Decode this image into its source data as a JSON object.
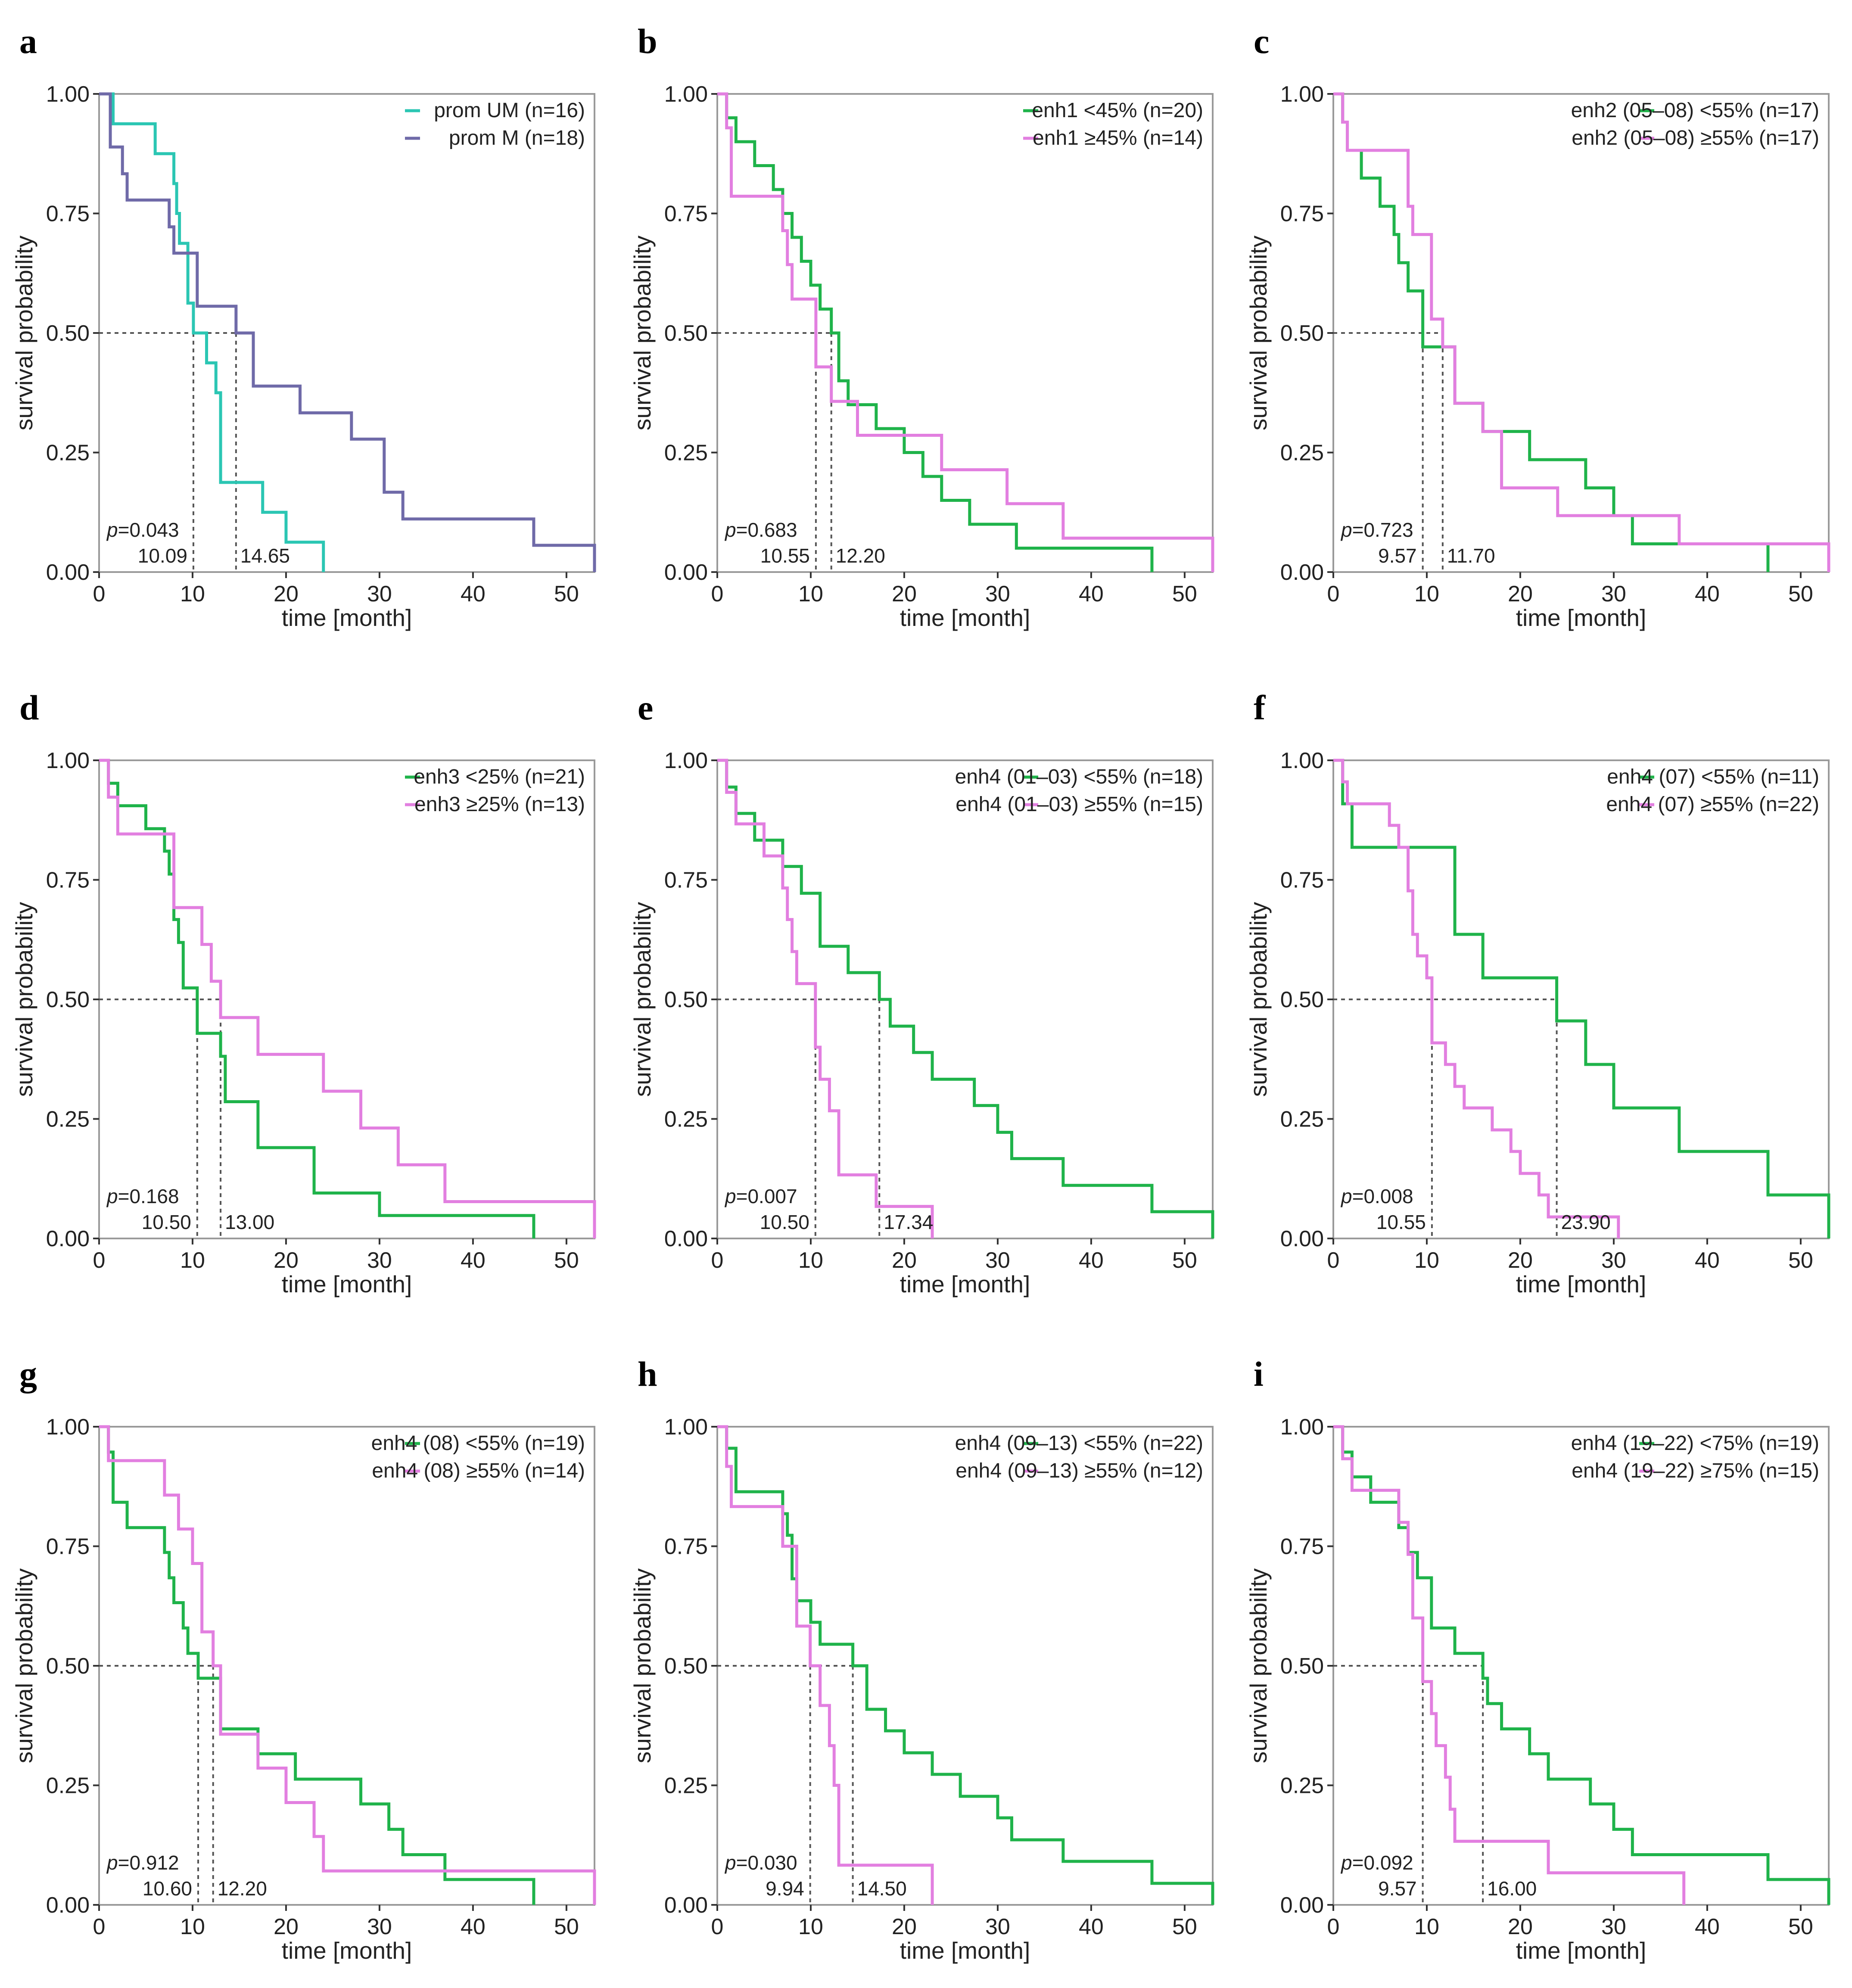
{
  "colors": {
    "teal": "#2bc6b3",
    "slate": "#6f6aa8",
    "green": "#1fb34a",
    "pink": "#e27fe0",
    "frame": "#9a9a9a",
    "guide": "#555555"
  },
  "chart_data": [
    {
      "panel": "a",
      "type": "line",
      "step": true,
      "xlabel": "time [month]",
      "ylabel": "survival probability",
      "xlim": [
        0,
        53
      ],
      "ylim": [
        0,
        1
      ],
      "xticks": [
        "0",
        "10",
        "20",
        "30",
        "40",
        "50"
      ],
      "yticks": [
        "0.00",
        "0.25",
        "0.50",
        "0.75",
        "1.00"
      ],
      "p_value": "p=0.043",
      "median_labels": [
        "10.09",
        "14.65"
      ],
      "series": [
        {
          "name": "prom UM (n=16)",
          "color": "#2bc6b3",
          "median": 10.09,
          "times": [
            1.5,
            6,
            8,
            8.3,
            8.6,
            9.5,
            10.09,
            11.5,
            12.5,
            13,
            17.5,
            20,
            22.8,
            24
          ],
          "survival": [
            0.9375,
            0.875,
            0.8125,
            0.75,
            0.6875,
            0.5625,
            0.5,
            0.4375,
            0.375,
            0.1875,
            0.125,
            0.0625,
            0.0625,
            0.0
          ]
        },
        {
          "name": "prom M (n=18)",
          "color": "#6f6aa8",
          "median": 14.65,
          "times": [
            1.2,
            2.5,
            3,
            7.5,
            8,
            10.5,
            14.65,
            16.5,
            21.5,
            27,
            30.5,
            32.5,
            37,
            46.5,
            53
          ],
          "survival": [
            0.889,
            0.833,
            0.778,
            0.722,
            0.667,
            0.556,
            0.5,
            0.389,
            0.333,
            0.278,
            0.167,
            0.111,
            0.111,
            0.056,
            0.0
          ]
        }
      ]
    },
    {
      "panel": "b",
      "type": "line",
      "step": true,
      "xlabel": "time [month]",
      "ylabel": "survival probability",
      "xlim": [
        0,
        53
      ],
      "ylim": [
        0,
        1
      ],
      "xticks": [
        "0",
        "10",
        "20",
        "30",
        "40",
        "50"
      ],
      "yticks": [
        "0.00",
        "0.25",
        "0.50",
        "0.75",
        "1.00"
      ],
      "p_value": "p=0.683",
      "median_labels": [
        "10.55",
        "12.20"
      ],
      "series": [
        {
          "name": "enh1 <45% (n=20)",
          "color": "#1fb34a",
          "median": 12.2,
          "times": [
            1,
            2,
            4,
            6,
            7,
            8,
            9,
            10,
            11,
            12.2,
            13,
            14,
            17,
            20,
            22,
            24,
            27,
            32,
            46.5
          ],
          "survival": [
            0.95,
            0.9,
            0.85,
            0.8,
            0.75,
            0.7,
            0.65,
            0.6,
            0.55,
            0.5,
            0.4,
            0.35,
            0.3,
            0.25,
            0.2,
            0.15,
            0.1,
            0.05,
            0.0
          ]
        },
        {
          "name": "enh1 ≥45% (n=14)",
          "color": "#e27fe0",
          "median": 10.55,
          "times": [
            1,
            1.5,
            7,
            7.5,
            8,
            10.55,
            12.2,
            15,
            24,
            31,
            37,
            53
          ],
          "survival": [
            0.929,
            0.786,
            0.714,
            0.643,
            0.571,
            0.429,
            0.357,
            0.286,
            0.214,
            0.143,
            0.071,
            0.0
          ]
        }
      ]
    },
    {
      "panel": "c",
      "type": "line",
      "step": true,
      "xlabel": "time [month]",
      "ylabel": "survival probability",
      "xlim": [
        0,
        53
      ],
      "ylim": [
        0,
        1
      ],
      "xticks": [
        "0",
        "10",
        "20",
        "30",
        "40",
        "50"
      ],
      "yticks": [
        "0.00",
        "0.25",
        "0.50",
        "0.75",
        "1.00"
      ],
      "p_value": "p=0.723",
      "median_labels": [
        "9.57",
        "11.70"
      ],
      "series": [
        {
          "name": "enh2 (05–08) <55% (n=17)",
          "color": "#1fb34a",
          "median": 9.57,
          "times": [
            1,
            1.5,
            3,
            5,
            6.5,
            7,
            8,
            9.57,
            13,
            16,
            21,
            27,
            30,
            32,
            46.5
          ],
          "survival": [
            0.941,
            0.882,
            0.824,
            0.765,
            0.706,
            0.647,
            0.588,
            0.471,
            0.353,
            0.294,
            0.235,
            0.176,
            0.118,
            0.059,
            0.0
          ]
        },
        {
          "name": "enh2 (05–08) ≥55% (n=17)",
          "color": "#e27fe0",
          "median": 11.7,
          "times": [
            1,
            1.5,
            8,
            8.5,
            10.5,
            11.7,
            13,
            16,
            18,
            24,
            37,
            53
          ],
          "survival": [
            0.941,
            0.882,
            0.765,
            0.706,
            0.529,
            0.471,
            0.353,
            0.294,
            0.176,
            0.118,
            0.059,
            0.0
          ]
        }
      ]
    },
    {
      "panel": "d",
      "type": "line",
      "step": true,
      "xlabel": "time [month]",
      "ylabel": "survival probability",
      "xlim": [
        0,
        53
      ],
      "ylim": [
        0,
        1
      ],
      "xticks": [
        "0",
        "10",
        "20",
        "30",
        "40",
        "50"
      ],
      "yticks": [
        "0.00",
        "0.25",
        "0.50",
        "0.75",
        "1.00"
      ],
      "p_value": "p=0.168",
      "median_labels": [
        "10.50",
        "13.00"
      ],
      "series": [
        {
          "name": "enh3 <25% (n=21)",
          "color": "#1fb34a",
          "median": 10.5,
          "times": [
            1,
            2,
            5,
            7,
            7.5,
            8,
            8.5,
            9,
            10.5,
            13,
            13.5,
            17,
            23,
            30,
            46.5
          ],
          "survival": [
            0.952,
            0.905,
            0.857,
            0.81,
            0.762,
            0.667,
            0.619,
            0.524,
            0.429,
            0.381,
            0.286,
            0.19,
            0.095,
            0.048,
            0.0
          ]
        },
        {
          "name": "enh3 ≥25% (n=13)",
          "color": "#e27fe0",
          "median": 13.0,
          "times": [
            1,
            2,
            8,
            11,
            12,
            13,
            17,
            24,
            28,
            32,
            37,
            53
          ],
          "survival": [
            0.923,
            0.846,
            0.692,
            0.615,
            0.538,
            0.462,
            0.385,
            0.308,
            0.231,
            0.154,
            0.077,
            0.0
          ]
        }
      ]
    },
    {
      "panel": "e",
      "type": "line",
      "step": true,
      "xlabel": "time [month]",
      "ylabel": "survival probability",
      "xlim": [
        0,
        53
      ],
      "ylim": [
        0,
        1
      ],
      "xticks": [
        "0",
        "10",
        "20",
        "30",
        "40",
        "50"
      ],
      "yticks": [
        "0.00",
        "0.25",
        "0.50",
        "0.75",
        "1.00"
      ],
      "p_value": "p=0.007",
      "median_labels": [
        "10.50",
        "17.34"
      ],
      "series": [
        {
          "name": "enh4 (01–03) <55% (n=18)",
          "color": "#1fb34a",
          "median": 17.34,
          "times": [
            1,
            2,
            4,
            7,
            9,
            11,
            14,
            17.34,
            18.5,
            21,
            23,
            27.5,
            30,
            31.5,
            37,
            46.5,
            53
          ],
          "survival": [
            0.944,
            0.889,
            0.833,
            0.778,
            0.722,
            0.611,
            0.556,
            0.5,
            0.444,
            0.389,
            0.333,
            0.278,
            0.222,
            0.167,
            0.111,
            0.056,
            0.0
          ]
        },
        {
          "name": "enh4 (01–03) ≥55% (n=15)",
          "color": "#e27fe0",
          "median": 10.5,
          "times": [
            1,
            2,
            5,
            7,
            7.5,
            8,
            8.5,
            10.5,
            11,
            12,
            13,
            17,
            23
          ],
          "survival": [
            0.933,
            0.867,
            0.8,
            0.733,
            0.667,
            0.6,
            0.533,
            0.4,
            0.333,
            0.267,
            0.133,
            0.067,
            0.0
          ]
        }
      ]
    },
    {
      "panel": "f",
      "type": "line",
      "step": true,
      "xlabel": "time [month]",
      "ylabel": "survival probability",
      "xlim": [
        0,
        53
      ],
      "ylim": [
        0,
        1
      ],
      "xticks": [
        "0",
        "10",
        "20",
        "30",
        "40",
        "50"
      ],
      "yticks": [
        "0.00",
        "0.25",
        "0.50",
        "0.75",
        "1.00"
      ],
      "p_value": "p=0.008",
      "median_labels": [
        "10.55",
        "23.90"
      ],
      "series": [
        {
          "name": "enh4 (07) <55% (n=11)",
          "color": "#1fb34a",
          "median": 23.9,
          "times": [
            1,
            2,
            13,
            16,
            23.9,
            27,
            30,
            37,
            46.5,
            53
          ],
          "survival": [
            0.909,
            0.818,
            0.636,
            0.545,
            0.455,
            0.364,
            0.273,
            0.182,
            0.091,
            0.0
          ]
        },
        {
          "name": "enh4 (07) ≥55% (n=22)",
          "color": "#e27fe0",
          "median": 10.55,
          "times": [
            1,
            1.5,
            6,
            7,
            8,
            8.5,
            9,
            10,
            10.55,
            12,
            13,
            14,
            17,
            19,
            20,
            22,
            23,
            24,
            30.5
          ],
          "survival": [
            0.955,
            0.909,
            0.864,
            0.818,
            0.727,
            0.636,
            0.591,
            0.545,
            0.409,
            0.364,
            0.318,
            0.273,
            0.227,
            0.182,
            0.136,
            0.091,
            0.045,
            0.045,
            0.0
          ]
        }
      ]
    },
    {
      "panel": "g",
      "type": "line",
      "step": true,
      "xlabel": "time [month]",
      "ylabel": "survival probability",
      "xlim": [
        0,
        53
      ],
      "ylim": [
        0,
        1
      ],
      "xticks": [
        "0",
        "10",
        "20",
        "30",
        "40",
        "50"
      ],
      "yticks": [
        "0.00",
        "0.25",
        "0.50",
        "0.75",
        "1.00"
      ],
      "p_value": "p=0.912",
      "median_labels": [
        "10.60",
        "12.20"
      ],
      "series": [
        {
          "name": "enh4 (08) <55% (n=19)",
          "color": "#1fb34a",
          "median": 10.6,
          "times": [
            1,
            1.5,
            3,
            7,
            7.5,
            8,
            9,
            9.5,
            10.6,
            13,
            17,
            21,
            28,
            31,
            32.5,
            37,
            46.5
          ],
          "survival": [
            0.947,
            0.842,
            0.789,
            0.737,
            0.684,
            0.632,
            0.579,
            0.526,
            0.474,
            0.368,
            0.316,
            0.263,
            0.211,
            0.158,
            0.105,
            0.053,
            0.0
          ]
        },
        {
          "name": "enh4 (08) ≥55% (n=14)",
          "color": "#e27fe0",
          "median": 12.2,
          "times": [
            1,
            7,
            8.5,
            10,
            11,
            12.2,
            13,
            17,
            20,
            23,
            24,
            53
          ],
          "survival": [
            0.929,
            0.857,
            0.786,
            0.714,
            0.571,
            0.5,
            0.357,
            0.286,
            0.214,
            0.143,
            0.071,
            0.0
          ]
        }
      ]
    },
    {
      "panel": "h",
      "type": "line",
      "step": true,
      "xlabel": "time [month]",
      "ylabel": "survival probability",
      "xlim": [
        0,
        53
      ],
      "ylim": [
        0,
        1
      ],
      "xticks": [
        "0",
        "10",
        "20",
        "30",
        "40",
        "50"
      ],
      "yticks": [
        "0.00",
        "0.25",
        "0.50",
        "0.75",
        "1.00"
      ],
      "p_value": "p=0.030",
      "median_labels": [
        "9.94",
        "14.50"
      ],
      "series": [
        {
          "name": "enh4 (09–13) <55% (n=22)",
          "color": "#1fb34a",
          "median": 14.5,
          "times": [
            1,
            2,
            7,
            7.5,
            8,
            8.5,
            10,
            11,
            14.5,
            16,
            18,
            20,
            23,
            26,
            30,
            31.5,
            37,
            46.5,
            53
          ],
          "survival": [
            0.955,
            0.864,
            0.818,
            0.773,
            0.682,
            0.636,
            0.591,
            0.545,
            0.5,
            0.409,
            0.364,
            0.318,
            0.273,
            0.227,
            0.182,
            0.136,
            0.091,
            0.045,
            0.0
          ]
        },
        {
          "name": "enh4 (09–13) ≥55% (n=12)",
          "color": "#e27fe0",
          "median": 9.94,
          "times": [
            1,
            1.5,
            7,
            8.5,
            9.94,
            11,
            12,
            12.5,
            13,
            23
          ],
          "survival": [
            0.917,
            0.833,
            0.75,
            0.583,
            0.5,
            0.417,
            0.333,
            0.25,
            0.083,
            0.0
          ]
        }
      ]
    },
    {
      "panel": "i",
      "type": "line",
      "step": true,
      "xlabel": "time [month]",
      "ylabel": "survival probability",
      "xlim": [
        0,
        53
      ],
      "ylim": [
        0,
        1
      ],
      "xticks": [
        "0",
        "10",
        "20",
        "30",
        "40",
        "50"
      ],
      "yticks": [
        "0.00",
        "0.25",
        "0.50",
        "0.75",
        "1.00"
      ],
      "p_value": "p=0.092",
      "median_labels": [
        "9.57",
        "16.00"
      ],
      "series": [
        {
          "name": "enh4 (19–22) <75% (n=19)",
          "color": "#1fb34a",
          "median": 16.0,
          "times": [
            1,
            2,
            4,
            7,
            8,
            9,
            10.5,
            13,
            16,
            16.5,
            18,
            21,
            23,
            27.5,
            30,
            32,
            46.5,
            53
          ],
          "survival": [
            0.947,
            0.895,
            0.842,
            0.789,
            0.737,
            0.684,
            0.579,
            0.526,
            0.474,
            0.421,
            0.368,
            0.316,
            0.263,
            0.211,
            0.158,
            0.105,
            0.053,
            0.0
          ]
        },
        {
          "name": "enh4 (19–22) ≥75% (n=15)",
          "color": "#e27fe0",
          "median": 9.57,
          "times": [
            1,
            2,
            7,
            8,
            8.5,
            9.57,
            10.5,
            11,
            12,
            12.5,
            13,
            14,
            23,
            37.5
          ],
          "survival": [
            0.933,
            0.867,
            0.8,
            0.733,
            0.6,
            0.467,
            0.4,
            0.333,
            0.267,
            0.2,
            0.133,
            0.133,
            0.067,
            0.0
          ]
        }
      ]
    }
  ]
}
